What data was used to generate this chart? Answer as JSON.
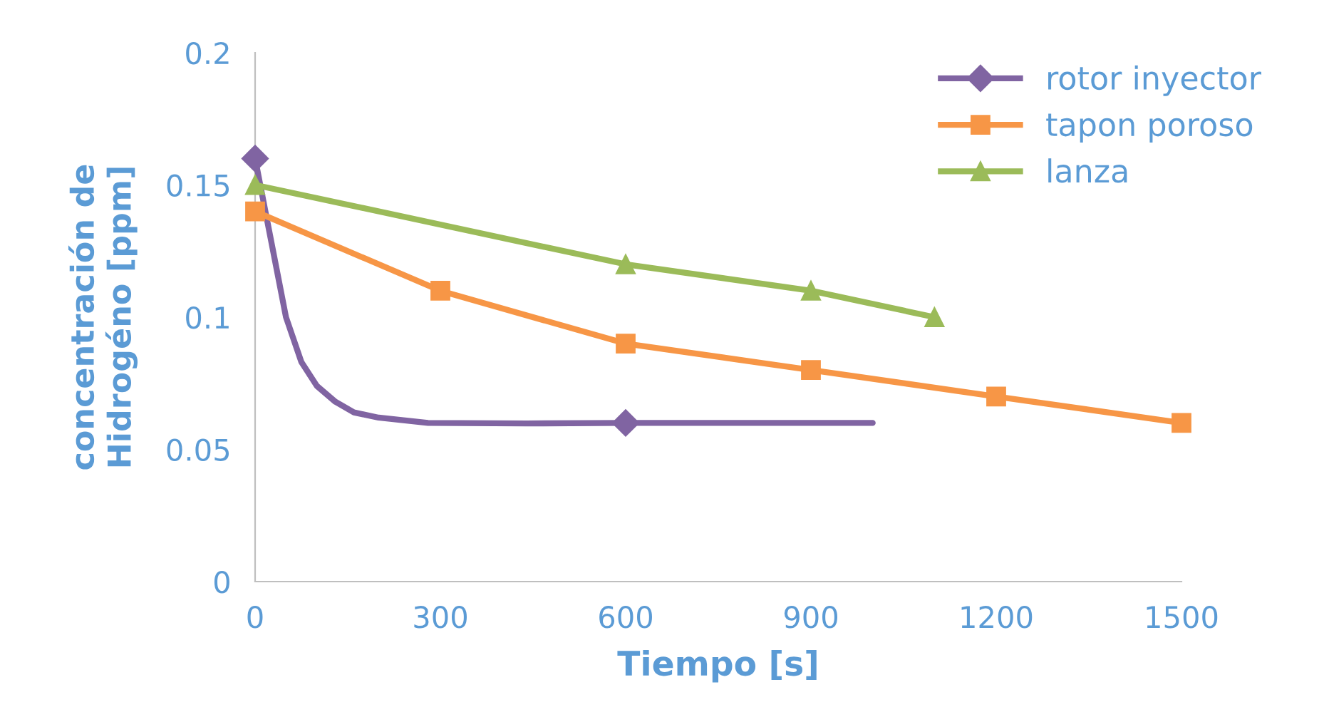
{
  "chart_data": {
    "type": "line",
    "xlabel": "Tiempo [s]",
    "ylabel": "concentración de\nHidrogéno [ppm]",
    "xlim": [
      0,
      1500
    ],
    "xticks": [
      0,
      300,
      600,
      900,
      1200,
      1500
    ],
    "ylim": [
      0,
      0.2
    ],
    "yticks": [
      0,
      0.05,
      0.1,
      0.15,
      0.2
    ],
    "grid": false,
    "legend": "top right",
    "series": [
      {
        "color": "#8064a2",
        "marker": "none",
        "x": [
          0,
          25,
          50,
          75,
          100,
          130,
          160,
          200,
          280,
          440,
          600,
          800,
          1000
        ],
        "values": [
          0.16,
          0.13,
          0.1,
          0.083,
          0.074,
          0.068,
          0.064,
          0.062,
          0.06,
          0.0598,
          0.06,
          0.06,
          0.06
        ]
      },
      {
        "name": "rotor inyector",
        "type": "scatter",
        "color": "#8064a2",
        "marker": "diamond",
        "x": [
          0,
          600
        ],
        "values": [
          0.16,
          0.06
        ]
      },
      {
        "name": "tapon poroso",
        "color": "#f79646",
        "marker": "square",
        "x": [
          0,
          300,
          600,
          900,
          1200,
          1500
        ],
        "values": [
          0.14,
          0.11,
          0.09,
          0.08,
          0.07,
          0.06
        ]
      },
      {
        "name": "lanza",
        "color": "#9bbb59",
        "marker": "triangle",
        "x": [
          0,
          600,
          900,
          1100
        ],
        "values": [
          0.15,
          0.12,
          0.11,
          0.1
        ]
      }
    ]
  }
}
